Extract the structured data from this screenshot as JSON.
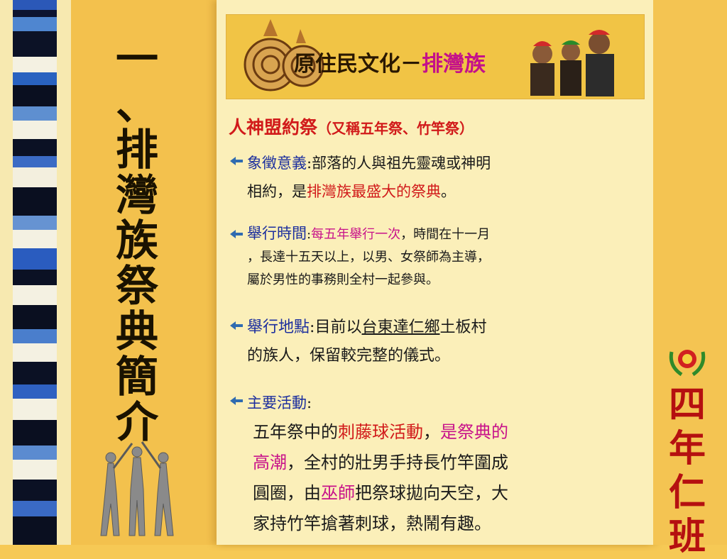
{
  "title": {
    "chars": [
      "一",
      "、",
      "排",
      "灣",
      "族",
      "祭",
      "典",
      "簡",
      "介"
    ]
  },
  "banner": {
    "text_main": "原住民文化－",
    "text_tribe": "排灣族"
  },
  "heading": {
    "main": "人神盟約祭",
    "sub": "（又稱五年祭、竹竿祭）"
  },
  "sections": {
    "meaning": {
      "label": "象徵意義",
      "colon": ":",
      "l1": "部落的人與祖先靈魂或神明",
      "l2_a": "相約，是",
      "l2_b": "排灣族最盛大的祭典",
      "l2_c": "。"
    },
    "time": {
      "label": "舉行時間",
      "colon": ":",
      "l1_a": "每五年舉行一次",
      "l1_b": "，時間在十一月",
      "l2": "，長達十五天以上，以男、女祭師為主導，",
      "l3": "屬於男性的事務則全村一起參與。"
    },
    "place": {
      "label": "舉行地點",
      "colon": ":",
      "l1_a": "目前以",
      "l1_b": "台東達仁鄉",
      "l1_c": "土板村",
      "l2": "的族人，保留較完整的儀式。"
    },
    "activity": {
      "label": "主要活動",
      "colon": ":",
      "l1_a": "五年祭中的",
      "l1_b": "刺藤球活動",
      "l1_c": "，",
      "l1_d": "是祭典的",
      "l2_a": "高潮",
      "l2_b": "，全村的壯男手持長竹竿圍成",
      "l3_a": "圓圈，由",
      "l3_b": "巫師",
      "l3_c": "把祭球拋向天空，大",
      "l4": "家持竹竿搶著刺球，熱鬧有趣。"
    }
  },
  "class_label": {
    "chars": [
      "四",
      "年",
      "仁",
      "班"
    ]
  },
  "colors": {
    "accent_red": "#d11a1a",
    "accent_blue": "#1c2f9e",
    "accent_magenta": "#c8138a",
    "class_red": "#b51010"
  }
}
